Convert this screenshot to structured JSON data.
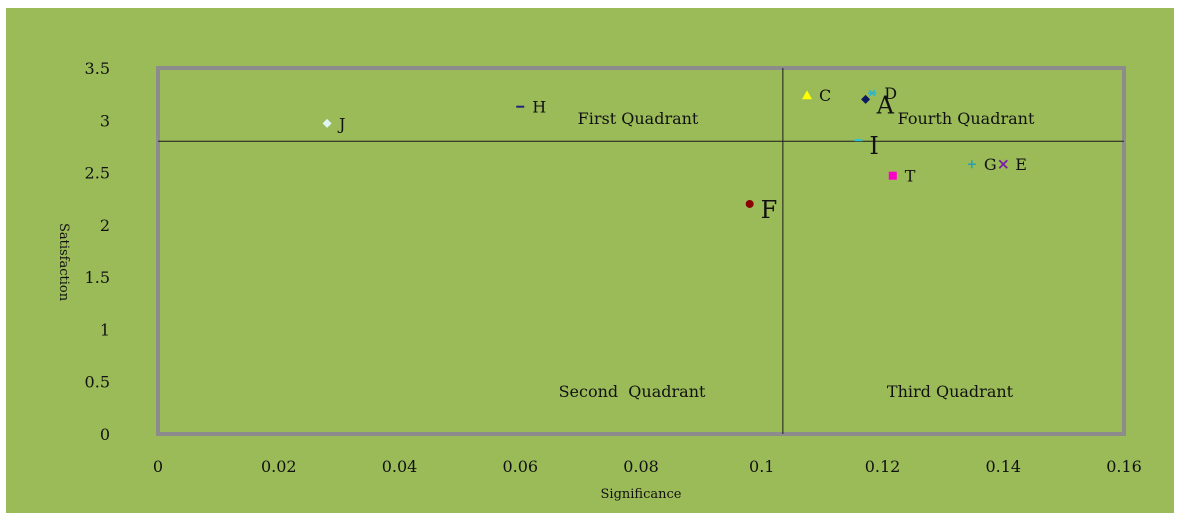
{
  "chart_data": {
    "type": "scatter",
    "title": "",
    "xlabel": "Significance",
    "ylabel": "Satisfaction",
    "xlim": [
      0,
      0.16
    ],
    "ylim": [
      0,
      3.5
    ],
    "x_ticks": [
      "0",
      "0.02",
      "0.04",
      "0.06",
      "0.08",
      "0.1",
      "0.12",
      "0.14",
      "0.16"
    ],
    "y_ticks": [
      "0",
      "0.5",
      "1",
      "1.5",
      "2",
      "2.5",
      "3",
      "3.5"
    ],
    "divider_x": 0.1035,
    "divider_y": 2.8,
    "quadrant_labels": {
      "first": "First Quadrant",
      "second": "Second  Quadrant",
      "third": "Third Quadrant",
      "fourth": "Fourth Quadrant"
    },
    "background_color": "#9bbb59",
    "points": [
      {
        "label": "J",
        "x": 0.028,
        "y": 2.97,
        "marker": "diamond",
        "color": "#e0f4f4",
        "label_size": "normal"
      },
      {
        "label": "H",
        "x": 0.06,
        "y": 3.13,
        "marker": "dash",
        "color": "#1a237e",
        "label_size": "normal"
      },
      {
        "label": "F",
        "x": 0.098,
        "y": 2.2,
        "marker": "circle",
        "color": "#8b0000",
        "label_size": "big"
      },
      {
        "label": "C",
        "x": 0.1075,
        "y": 3.24,
        "marker": "triangle",
        "color": "#ffff00",
        "label_size": "normal"
      },
      {
        "label": "D",
        "x": 0.1183,
        "y": 3.26,
        "marker": "star",
        "color": "#29b6d0",
        "label_size": "normal"
      },
      {
        "label": "A",
        "x": 0.1172,
        "y": 3.2,
        "marker": "diamond",
        "color": "#0a1a5c",
        "label_size": "big"
      },
      {
        "label": "I",
        "x": 0.116,
        "y": 2.81,
        "marker": "dash",
        "color": "#29c4d8",
        "label_size": "big"
      },
      {
        "label": "T",
        "x": 0.1217,
        "y": 2.47,
        "marker": "square",
        "color": "#ff00cc",
        "label_size": "normal"
      },
      {
        "label": "G",
        "x": 0.1348,
        "y": 2.58,
        "marker": "plus",
        "color": "#29a0b0",
        "label_size": "normal"
      },
      {
        "label": "E",
        "x": 0.14,
        "y": 2.58,
        "marker": "cross",
        "color": "#7b1fa2",
        "label_size": "normal"
      }
    ]
  }
}
